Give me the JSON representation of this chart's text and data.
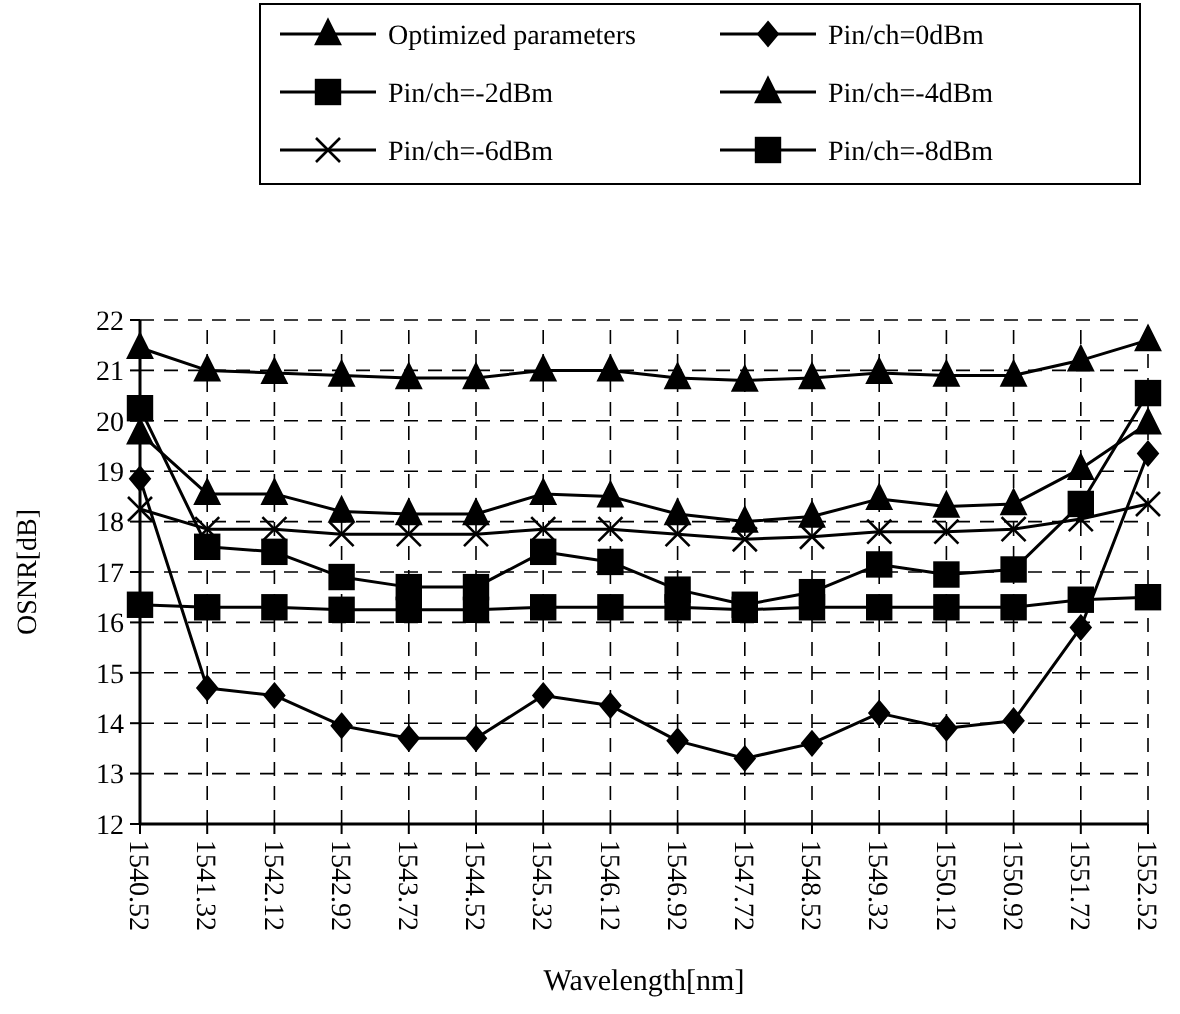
{
  "chart_data": {
    "type": "line",
    "xlabel": "Wavelength[nm]",
    "ylabel": "OSNR[dB]",
    "xlim": [
      1540.52,
      1552.52
    ],
    "xticks": [
      1540.52,
      1541.32,
      1542.12,
      1542.92,
      1543.72,
      1544.52,
      1545.32,
      1546.12,
      1546.92,
      1547.72,
      1548.52,
      1549.32,
      1550.12,
      1550.92,
      1551.72,
      1552.52
    ],
    "ylim": [
      12,
      22
    ],
    "yticks": [
      12,
      13,
      14,
      15,
      16,
      17,
      18,
      19,
      20,
      21,
      22
    ],
    "grid": true,
    "legend": "top",
    "line_style": "solid",
    "x": [
      1540.52,
      1541.32,
      1542.12,
      1542.92,
      1543.72,
      1544.52,
      1545.32,
      1546.12,
      1546.92,
      1547.72,
      1548.52,
      1549.32,
      1550.12,
      1550.92,
      1551.72,
      1552.52
    ],
    "series": [
      {
        "name": "Optimized parameters",
        "color": "#000000",
        "marker": "triangle",
        "values": [
          21.45,
          21.0,
          20.95,
          20.9,
          20.85,
          20.85,
          21.0,
          21.0,
          20.85,
          20.8,
          20.85,
          20.95,
          20.9,
          20.9,
          21.2,
          21.6
        ]
      },
      {
        "name": "Pin/ch=0dBm",
        "color": "#000000",
        "marker": "diamond",
        "values": [
          18.85,
          14.7,
          14.55,
          13.95,
          13.7,
          13.7,
          14.55,
          14.35,
          13.65,
          13.3,
          13.6,
          14.2,
          13.9,
          14.05,
          15.9,
          19.35
        ]
      },
      {
        "name": "Pin/ch=-2dBm",
        "color": "#000000",
        "marker": "square",
        "values": [
          20.25,
          17.5,
          17.4,
          16.9,
          16.7,
          16.7,
          17.4,
          17.2,
          16.65,
          16.35,
          16.6,
          17.15,
          16.95,
          17.05,
          18.35,
          20.55
        ]
      },
      {
        "name": "Pin/ch=-4dBm",
        "color": "#000000",
        "marker": "triangle",
        "values": [
          19.75,
          18.55,
          18.55,
          18.2,
          18.15,
          18.15,
          18.55,
          18.5,
          18.15,
          18.0,
          18.1,
          18.45,
          18.3,
          18.35,
          19.05,
          19.95
        ]
      },
      {
        "name": "Pin/ch=-6dBm",
        "color": "#000000",
        "marker": "cross",
        "values": [
          18.25,
          17.85,
          17.85,
          17.75,
          17.75,
          17.75,
          17.85,
          17.85,
          17.75,
          17.65,
          17.7,
          17.8,
          17.8,
          17.85,
          18.05,
          18.35
        ]
      },
      {
        "name": "Pin/ch=-8dBm",
        "color": "#000000",
        "marker": "square",
        "values": [
          16.35,
          16.3,
          16.3,
          16.25,
          16.25,
          16.25,
          16.3,
          16.3,
          16.3,
          16.25,
          16.3,
          16.3,
          16.3,
          16.3,
          16.45,
          16.5
        ]
      }
    ]
  }
}
